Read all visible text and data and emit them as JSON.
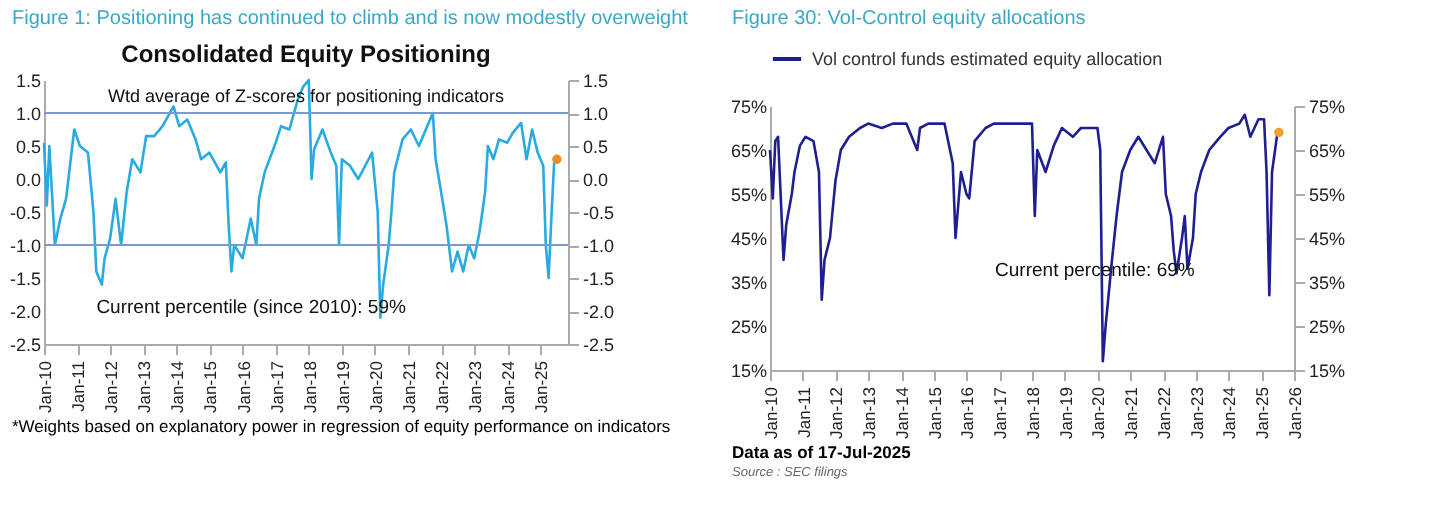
{
  "chart_data": [
    {
      "type": "line",
      "title": "Figure 1: Positioning has continued to climb and is now modestly overweight",
      "subtitle": "Consolidated Equity Positioning",
      "annotations": [
        "Wtd average of Z-scores for positioning indicators",
        "Current percentile (since 2010): 59%",
        "*Weights based on explanatory power in regression of equity performance on indicators"
      ],
      "xlim": [
        "2010-01",
        "2025-11"
      ],
      "xticks": [
        {
          "value": "2010-01",
          "label": "Jan-10"
        },
        {
          "value": "2011-01",
          "label": "Jan-11"
        },
        {
          "value": "2012-01",
          "label": "Jan-12"
        },
        {
          "value": "2013-01",
          "label": "Jan-13"
        },
        {
          "value": "2014-01",
          "label": "Jan-14"
        },
        {
          "value": "2015-01",
          "label": "Jan-15"
        },
        {
          "value": "2016-01",
          "label": "Jan-16"
        },
        {
          "value": "2017-01",
          "label": "Jan-17"
        },
        {
          "value": "2018-01",
          "label": "Jan-18"
        },
        {
          "value": "2019-01",
          "label": "Jan-19"
        },
        {
          "value": "2020-01",
          "label": "Jan-20"
        },
        {
          "value": "2021-01",
          "label": "Jan-21"
        },
        {
          "value": "2022-01",
          "label": "Jan-22"
        },
        {
          "value": "2023-01",
          "label": "Jan-23"
        },
        {
          "value": "2024-01",
          "label": "Jan-24"
        },
        {
          "value": "2025-01",
          "label": "Jan-25"
        }
      ],
      "ylim": [
        -2.5,
        1.5
      ],
      "yticks": [
        {
          "value": -2.5,
          "label": "-2.5"
        },
        {
          "value": -2,
          "label": "-2.0"
        },
        {
          "value": -1.5,
          "label": "-1.5"
        },
        {
          "value": -1,
          "label": "-1.0"
        },
        {
          "value": -0.5,
          "label": "-0.5"
        },
        {
          "value": 0,
          "label": "0.0"
        },
        {
          "value": 0.5,
          "label": "0.5"
        },
        {
          "value": 1,
          "label": "1.0"
        },
        {
          "value": 1.5,
          "label": "1.5"
        }
      ],
      "y2lim": [
        -2.5,
        1.5
      ],
      "y2ticks": [
        {
          "value": -2.5,
          "label": "-2.5"
        },
        {
          "value": -2,
          "label": "-2.0"
        },
        {
          "value": -1.5,
          "label": "-1.5"
        },
        {
          "value": -1,
          "label": "-1.0"
        },
        {
          "value": -0.5,
          "label": "-0.5"
        },
        {
          "value": 0,
          "label": "0.0"
        },
        {
          "value": 0.5,
          "label": "0.5"
        },
        {
          "value": 1,
          "label": "1.0"
        },
        {
          "value": 1.5,
          "label": "1.5"
        }
      ],
      "ref_lines": [
        {
          "axis": "y",
          "value": 1,
          "color": "#7a9ccc"
        },
        {
          "axis": "y",
          "value": -1,
          "color": "#7a9ccc"
        }
      ],
      "series": [
        {
          "color": "#29abe2",
          "x": [
            "2010-01",
            "2010-02",
            "2010-03",
            "2010-05",
            "2010-07",
            "2010-09",
            "2010-12",
            "2011-02",
            "2011-05",
            "2011-07",
            "2011-08",
            "2011-10",
            "2011-11",
            "2012-01",
            "2012-03",
            "2012-05",
            "2012-07",
            "2012-09",
            "2012-12",
            "2013-02",
            "2013-05",
            "2013-08",
            "2013-12",
            "2014-02",
            "2014-05",
            "2014-08",
            "2014-10",
            "2015-01",
            "2015-05",
            "2015-07",
            "2015-08",
            "2015-09",
            "2015-10",
            "2016-01",
            "2016-04",
            "2016-06",
            "2016-07",
            "2016-09",
            "2017-01",
            "2017-03",
            "2017-06",
            "2017-09",
            "2017-11",
            "2018-01",
            "2018-02",
            "2018-03",
            "2018-06",
            "2018-09",
            "2018-11",
            "2018-12",
            "2019-01",
            "2019-04",
            "2019-07",
            "2019-12",
            "2020-02",
            "2020-03",
            "2020-04",
            "2020-06",
            "2020-07",
            "2020-08",
            "2020-11",
            "2021-02",
            "2021-05",
            "2021-07",
            "2021-10",
            "2021-11",
            "2022-01",
            "2022-03",
            "2022-05",
            "2022-07",
            "2022-09",
            "2022-11",
            "2023-01",
            "2023-03",
            "2023-05",
            "2023-06",
            "2023-08",
            "2023-10",
            "2024-01",
            "2024-03",
            "2024-06",
            "2024-08",
            "2024-10",
            "2024-12",
            "2025-02",
            "2025-03",
            "2025-04",
            "2025-05",
            "2025-06"
          ],
          "values": [
            0.55,
            -0.4,
            0.5,
            -1.0,
            -0.6,
            -0.3,
            0.75,
            0.5,
            0.4,
            -0.5,
            -1.4,
            -1.6,
            -1.2,
            -0.9,
            -0.3,
            -1.0,
            -0.2,
            0.3,
            0.1,
            0.65,
            0.65,
            0.8,
            1.1,
            0.8,
            0.9,
            0.6,
            0.3,
            0.4,
            0.1,
            0.25,
            -0.7,
            -1.4,
            -1.0,
            -1.2,
            -0.6,
            -1.0,
            -0.3,
            0.1,
            0.55,
            0.8,
            0.75,
            1.2,
            1.4,
            1.5,
            0.0,
            0.45,
            0.75,
            0.4,
            0.2,
            -1.0,
            0.3,
            0.2,
            0.0,
            0.4,
            -0.5,
            -2.1,
            -1.6,
            -1.0,
            -0.5,
            0.1,
            0.6,
            0.75,
            0.5,
            0.7,
            1.0,
            0.3,
            -0.2,
            -0.7,
            -1.4,
            -1.1,
            -1.4,
            -1.0,
            -1.2,
            -0.8,
            -0.2,
            0.5,
            0.3,
            0.6,
            0.55,
            0.7,
            0.85,
            0.3,
            0.75,
            0.4,
            0.2,
            -1.0,
            -1.5,
            -0.6,
            0.25
          ]
        },
        {
          "type": "scatter",
          "color": "#f28c28",
          "x": [
            "2025-07"
          ],
          "values": [
            0.3
          ]
        }
      ]
    },
    {
      "type": "line",
      "title": "Figure 30: Vol-Control equity allocations",
      "annotations": [
        "Current percentile: 69%",
        "Data as of 17-Jul-2025",
        "Source : SEC filings"
      ],
      "legend": "top",
      "xlim": [
        "2010-01",
        "2026-01"
      ],
      "xticks": [
        {
          "value": "2010-01",
          "label": "Jan-10"
        },
        {
          "value": "2011-01",
          "label": "Jan-11"
        },
        {
          "value": "2012-01",
          "label": "Jan-12"
        },
        {
          "value": "2013-01",
          "label": "Jan-13"
        },
        {
          "value": "2014-01",
          "label": "Jan-14"
        },
        {
          "value": "2015-01",
          "label": "Jan-15"
        },
        {
          "value": "2016-01",
          "label": "Jan-16"
        },
        {
          "value": "2017-01",
          "label": "Jan-17"
        },
        {
          "value": "2018-01",
          "label": "Jan-18"
        },
        {
          "value": "2019-01",
          "label": "Jan-19"
        },
        {
          "value": "2020-01",
          "label": "Jan-20"
        },
        {
          "value": "2021-01",
          "label": "Jan-21"
        },
        {
          "value": "2022-01",
          "label": "Jan-22"
        },
        {
          "value": "2023-01",
          "label": "Jan-23"
        },
        {
          "value": "2024-01",
          "label": "Jan-24"
        },
        {
          "value": "2025-01",
          "label": "Jan-25"
        },
        {
          "value": "2026-01",
          "label": "Jan-26"
        }
      ],
      "ylim": [
        15,
        75
      ],
      "yticks": [
        {
          "value": 15,
          "label": "15%"
        },
        {
          "value": 25,
          "label": "25%"
        },
        {
          "value": 35,
          "label": "35%"
        },
        {
          "value": 45,
          "label": "45%"
        },
        {
          "value": 55,
          "label": "55%"
        },
        {
          "value": 65,
          "label": "65%"
        },
        {
          "value": 75,
          "label": "75%"
        }
      ],
      "y2lim": [
        15,
        75
      ],
      "y2ticks": [
        {
          "value": 15,
          "label": "15%"
        },
        {
          "value": 25,
          "label": "25%"
        },
        {
          "value": 35,
          "label": "35%"
        },
        {
          "value": 45,
          "label": "45%"
        },
        {
          "value": 55,
          "label": "55%"
        },
        {
          "value": 65,
          "label": "65%"
        },
        {
          "value": 75,
          "label": "75%"
        }
      ],
      "series": [
        {
          "name": "Vol control funds estimated equity allocation",
          "color": "#1f1f8f",
          "x": [
            "2010-01",
            "2010-02",
            "2010-03",
            "2010-04",
            "2010-06",
            "2010-07",
            "2010-09",
            "2010-10",
            "2010-12",
            "2011-02",
            "2011-05",
            "2011-07",
            "2011-08",
            "2011-09",
            "2011-11",
            "2012-01",
            "2012-03",
            "2012-06",
            "2012-10",
            "2013-01",
            "2013-06",
            "2013-10",
            "2014-03",
            "2014-07",
            "2014-08",
            "2014-11",
            "2015-05",
            "2015-08",
            "2015-09",
            "2015-11",
            "2016-01",
            "2016-02",
            "2016-04",
            "2016-08",
            "2016-11",
            "2017-04",
            "2017-11",
            "2018-01",
            "2018-02",
            "2018-03",
            "2018-06",
            "2018-09",
            "2018-12",
            "2019-04",
            "2019-07",
            "2020-01",
            "2020-02",
            "2020-03",
            "2020-04",
            "2020-06",
            "2020-08",
            "2020-10",
            "2021-01",
            "2021-04",
            "2021-07",
            "2021-10",
            "2022-01",
            "2022-02",
            "2022-04",
            "2022-05",
            "2022-06",
            "2022-08",
            "2022-09",
            "2022-10",
            "2022-12",
            "2023-01",
            "2023-03",
            "2023-06",
            "2023-10",
            "2024-01",
            "2024-05",
            "2024-07",
            "2024-09",
            "2024-12",
            "2025-02",
            "2025-03",
            "2025-04",
            "2025-05",
            "2025-07"
          ],
          "values": [
            65,
            54,
            67,
            68,
            40,
            48,
            55,
            60,
            66,
            68,
            67,
            60,
            31,
            40,
            45,
            58,
            65,
            68,
            70,
            71,
            70,
            71,
            71,
            65,
            70,
            71,
            71,
            62,
            45,
            60,
            55,
            54,
            67,
            70,
            71,
            71,
            71,
            71,
            50,
            65,
            60,
            66,
            70,
            68,
            70,
            70,
            65,
            17,
            25,
            38,
            50,
            60,
            65,
            68,
            65,
            62,
            68,
            55,
            50,
            42,
            37,
            45,
            50,
            38,
            45,
            55,
            60,
            65,
            68,
            70,
            71,
            73,
            68,
            72,
            72,
            60,
            32,
            60,
            69
          ]
        },
        {
          "type": "scatter",
          "color": "#f0a030",
          "x": [
            "2025-07-17"
          ],
          "values": [
            69
          ]
        }
      ]
    }
  ]
}
